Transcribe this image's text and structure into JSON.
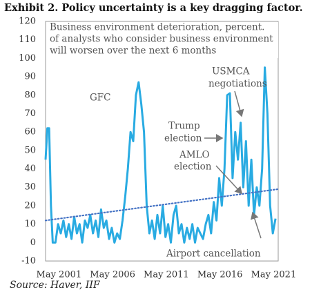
{
  "chart_data": {
    "type": "line",
    "title": "Exhibit 2. Policy uncertainty is a key dragging factor.",
    "subtitle_lines": [
      "Business environment deterioration, percent.",
      "of analysts who consider business environment",
      "will worsen over the next 6 months"
    ],
    "source": "Source: Haver, IIF",
    "annotations": [
      {
        "lines": [
          "GFC"
        ]
      },
      {
        "lines": [
          "USMCA",
          "negotiations"
        ]
      },
      {
        "lines": [
          "Trump",
          "election"
        ]
      },
      {
        "lines": [
          "AMLO",
          "election"
        ]
      },
      {
        "lines": [
          "Airport cancellation"
        ]
      }
    ],
    "xlim": [
      "1999-11",
      "2021-07"
    ],
    "xticks": [
      {
        "value": "2001-05",
        "label": "May 2001"
      },
      {
        "value": "2006-05",
        "label": "May 2006"
      },
      {
        "value": "2011-05",
        "label": "May 2011"
      },
      {
        "value": "2016-05",
        "label": "May 2016"
      },
      {
        "value": "2021-05",
        "label": "May 2021"
      }
    ],
    "ylim": [
      -10,
      120
    ],
    "yticks": [
      -10,
      0,
      10,
      20,
      30,
      40,
      50,
      60,
      70,
      80,
      90,
      100,
      110,
      120
    ],
    "series": [
      {
        "color": "#29abe2",
        "style": "solid",
        "x": [
          "1999-11",
          "2000-01",
          "2000-03",
          "2000-05",
          "2000-07",
          "2000-10",
          "2001-01",
          "2001-04",
          "2001-07",
          "2001-10",
          "2002-01",
          "2002-04",
          "2002-07",
          "2002-10",
          "2003-01",
          "2003-04",
          "2003-07",
          "2003-10",
          "2004-01",
          "2004-04",
          "2004-07",
          "2004-10",
          "2005-01",
          "2005-04",
          "2005-07",
          "2005-10",
          "2006-01",
          "2006-04",
          "2006-07",
          "2006-10",
          "2007-01",
          "2007-04",
          "2007-07",
          "2007-10",
          "2008-01",
          "2008-04",
          "2008-07",
          "2008-10",
          "2009-01",
          "2009-04",
          "2009-07",
          "2009-10",
          "2010-01",
          "2010-04",
          "2010-07",
          "2010-10",
          "2011-01",
          "2011-04",
          "2011-07",
          "2011-10",
          "2012-01",
          "2012-04",
          "2012-07",
          "2012-10",
          "2013-01",
          "2013-04",
          "2013-07",
          "2013-10",
          "2014-01",
          "2014-04",
          "2014-07",
          "2014-10",
          "2015-01",
          "2015-04",
          "2015-07",
          "2015-10",
          "2016-01",
          "2016-04",
          "2016-07",
          "2016-10",
          "2017-01",
          "2017-04",
          "2017-07",
          "2017-10",
          "2018-01",
          "2018-04",
          "2018-07",
          "2018-10",
          "2019-01",
          "2019-04",
          "2019-07",
          "2019-10",
          "2020-01",
          "2020-04",
          "2020-07",
          "2020-10",
          "2021-01",
          "2021-04"
        ],
        "values": [
          45,
          62,
          62,
          20,
          0,
          0,
          10,
          5,
          12,
          3,
          10,
          2,
          14,
          5,
          10,
          0,
          12,
          8,
          15,
          5,
          12,
          3,
          18,
          8,
          12,
          2,
          8,
          0,
          5,
          2,
          12,
          25,
          40,
          60,
          55,
          80,
          87,
          75,
          60,
          20,
          5,
          12,
          2,
          15,
          5,
          20,
          3,
          10,
          0,
          15,
          20,
          5,
          10,
          0,
          8,
          2,
          10,
          0,
          8,
          5,
          2,
          10,
          15,
          5,
          22,
          12,
          35,
          20,
          40,
          80,
          81,
          35,
          60,
          45,
          65,
          30,
          55,
          20,
          45,
          15,
          30,
          20,
          40,
          95,
          70,
          20,
          5,
          13
        ]
      },
      {
        "color": "#4472c4",
        "style": "dotted",
        "x": [
          "1999-11",
          "2021-07"
        ],
        "values": [
          12,
          29
        ]
      }
    ]
  }
}
